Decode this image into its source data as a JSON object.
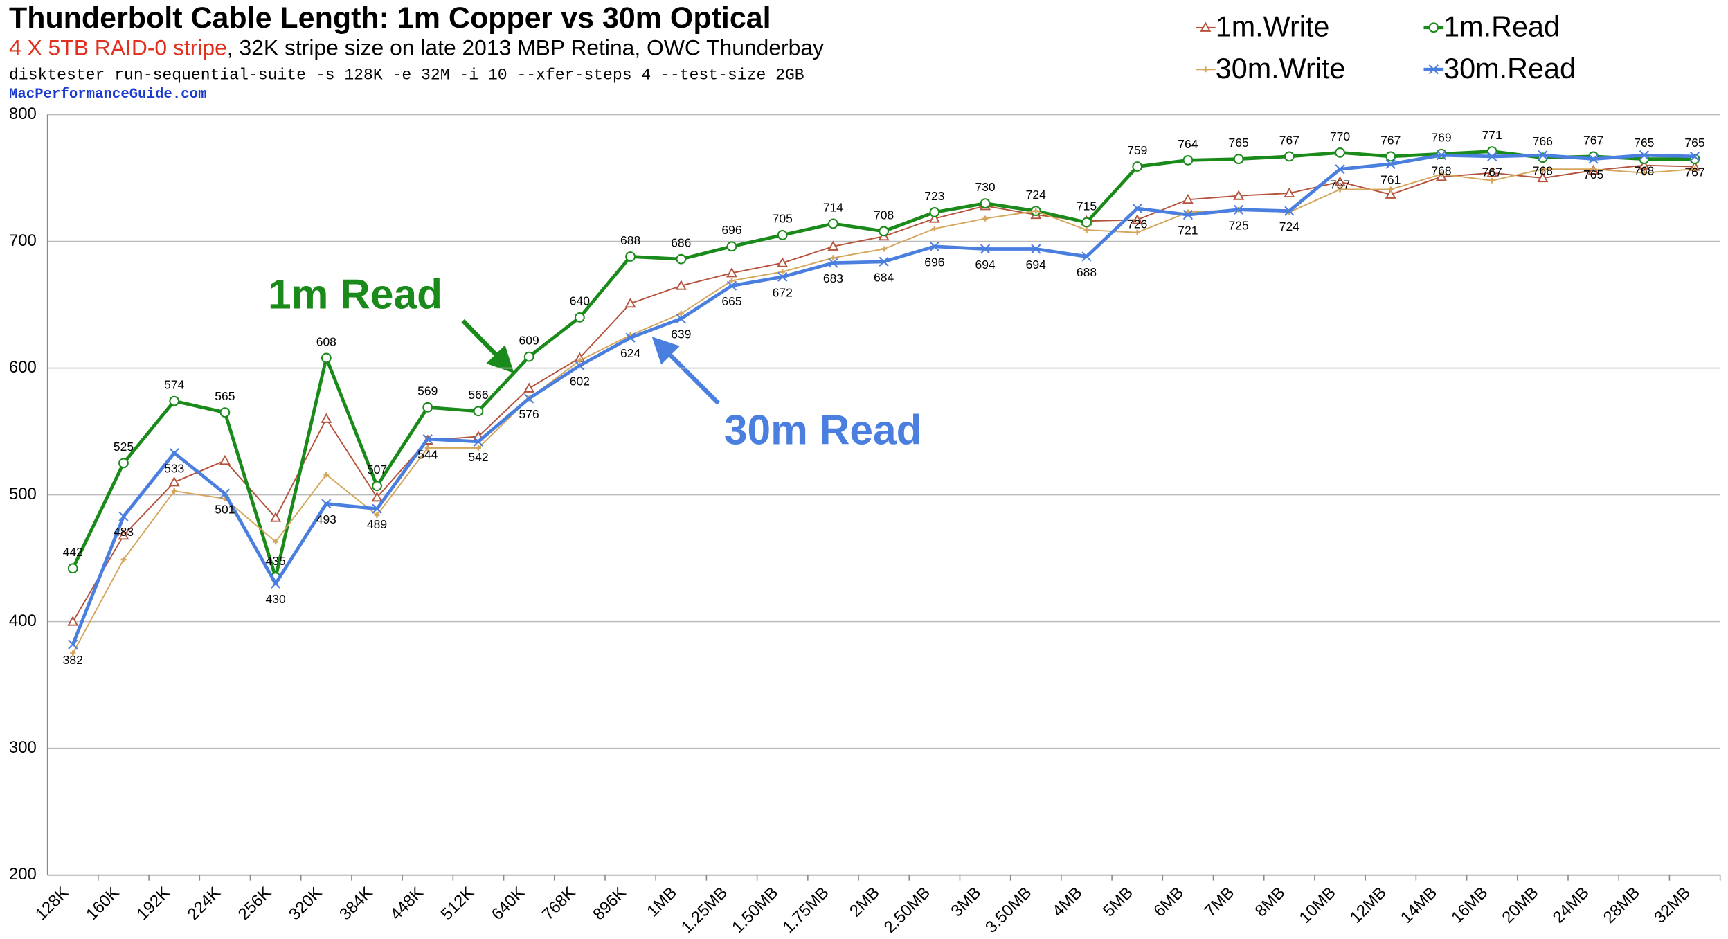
{
  "chart_data": {
    "type": "line",
    "title": "Thunderbolt Cable Length: 1m Copper vs 30m Optical",
    "subtitle_highlight": "4 X 5TB RAID-0 stripe",
    "subtitle": ", 32K stripe size on late 2013 MBP Retina, OWC Thunderbay",
    "command": "disktester run-sequential-suite -s 128K -e 32M -i 10 --xfer-steps 4 --test-size 2GB",
    "source": "MacPerformanceGuide.com",
    "categories": [
      "128K",
      "160K",
      "192K",
      "224K",
      "256K",
      "320K",
      "384K",
      "448K",
      "512K",
      "640K",
      "768K",
      "896K",
      "1MB",
      "1.25MB",
      "1.50MB",
      "1.75MB",
      "2MB",
      "2.50MB",
      "3MB",
      "3.50MB",
      "4MB",
      "5MB",
      "6MB",
      "7MB",
      "8MB",
      "10MB",
      "12MB",
      "14MB",
      "16MB",
      "20MB",
      "24MB",
      "28MB",
      "32MB"
    ],
    "series": [
      {
        "name": "1m.Write",
        "color": "#b5523b",
        "marker": "triangle",
        "width": 1.2,
        "labels": false,
        "values": [
          400,
          468,
          510,
          527,
          482,
          560,
          498,
          543,
          546,
          584,
          608,
          651,
          665,
          675,
          683,
          696,
          704,
          718,
          728,
          721,
          716,
          717,
          733,
          736,
          738,
          747,
          737,
          751,
          754,
          750,
          756,
          760,
          759
        ]
      },
      {
        "name": "1m.Read",
        "color": "#1a8a1a",
        "marker": "circle",
        "width": 3,
        "labels": "above",
        "values": [
          442,
          525,
          574,
          565,
          435,
          608,
          507,
          569,
          566,
          609,
          640,
          688,
          686,
          696,
          705,
          714,
          708,
          723,
          730,
          724,
          715,
          759,
          764,
          765,
          767,
          770,
          767,
          769,
          771,
          766,
          767,
          765,
          765
        ]
      },
      {
        "name": "30m.Write",
        "color": "#d4a55a",
        "marker": "star",
        "width": 1.2,
        "labels": false,
        "values": [
          375,
          449,
          503,
          497,
          463,
          516,
          484,
          537,
          537,
          576,
          606,
          626,
          643,
          669,
          676,
          687,
          694,
          710,
          718,
          724,
          709,
          707,
          723,
          725,
          723,
          741,
          741,
          753,
          748,
          757,
          757,
          754,
          757
        ]
      },
      {
        "name": "30m.Read",
        "color": "#4a7fe0",
        "marker": "x",
        "width": 3,
        "labels": "below",
        "values": [
          382,
          483,
          533,
          501,
          430,
          493,
          489,
          544,
          542,
          576,
          602,
          624,
          639,
          665,
          672,
          683,
          684,
          696,
          694,
          694,
          688,
          726,
          721,
          725,
          724,
          757,
          761,
          768,
          767,
          768,
          765,
          768,
          767
        ]
      }
    ],
    "ylim": [
      200,
      800
    ],
    "yticks": [
      200,
      300,
      400,
      500,
      600,
      700,
      800
    ],
    "grid": true,
    "legend": "top-right",
    "annotations": [
      {
        "text": "1m Read",
        "color": "#1a8a1a"
      },
      {
        "text": "30m Read",
        "color": "#4a7fe0"
      }
    ]
  }
}
